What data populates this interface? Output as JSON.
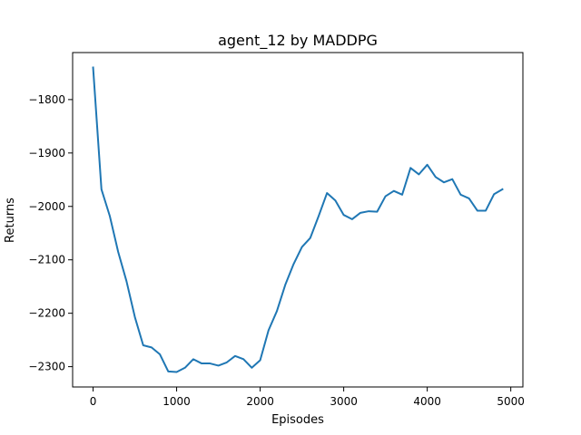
{
  "chart_data": {
    "type": "line",
    "title": "agent_12 by MADDPG",
    "xlabel": "Episodes",
    "ylabel": "Returns",
    "xlim": [
      -245,
      5145
    ],
    "ylim": [
      -2338,
      -1712
    ],
    "xticks": [
      0,
      1000,
      2000,
      3000,
      4000,
      5000
    ],
    "xtick_labels": [
      "0",
      "1000",
      "2000",
      "3000",
      "4000",
      "5000"
    ],
    "yticks": [
      -2300,
      -2200,
      -2100,
      -2000,
      -1900,
      -1800
    ],
    "ytick_labels": [
      "−2300",
      "−2200",
      "−2100",
      "−2000",
      "−1900",
      "−1800"
    ],
    "grid": false,
    "line_color": "#1f77b4",
    "series": [
      {
        "x": [
          0,
          100,
          200,
          300,
          400,
          500,
          600,
          700,
          800,
          900,
          1000,
          1100,
          1200,
          1300,
          1400,
          1500,
          1600,
          1700,
          1800,
          1900,
          2000,
          2100,
          2200,
          2300,
          2400,
          2500,
          2600,
          2700,
          2800,
          2900,
          3000,
          3100,
          3200,
          3300,
          3400,
          3500,
          3600,
          3700,
          3800,
          3900,
          4000,
          4100,
          4200,
          4300,
          4400,
          4500,
          4600,
          4700,
          4800,
          4900
        ],
        "y": [
          -1740,
          -1968,
          -2018,
          -2085,
          -2140,
          -2207,
          -2260,
          -2264,
          -2277,
          -2309,
          -2310,
          -2302,
          -2286,
          -2294,
          -2294,
          -2298,
          -2292,
          -2280,
          -2286,
          -2302,
          -2288,
          -2232,
          -2196,
          -2147,
          -2108,
          -2076,
          -2059,
          -2018,
          -1975,
          -1989,
          -2016,
          -2024,
          -2012,
          -2009,
          -2010,
          -1981,
          -1971,
          -1978,
          -1928,
          -1940,
          -1922,
          -1945,
          -1955,
          -1949,
          -1978,
          -1985,
          -2008,
          -2008,
          -1977,
          -1968
        ]
      }
    ]
  }
}
